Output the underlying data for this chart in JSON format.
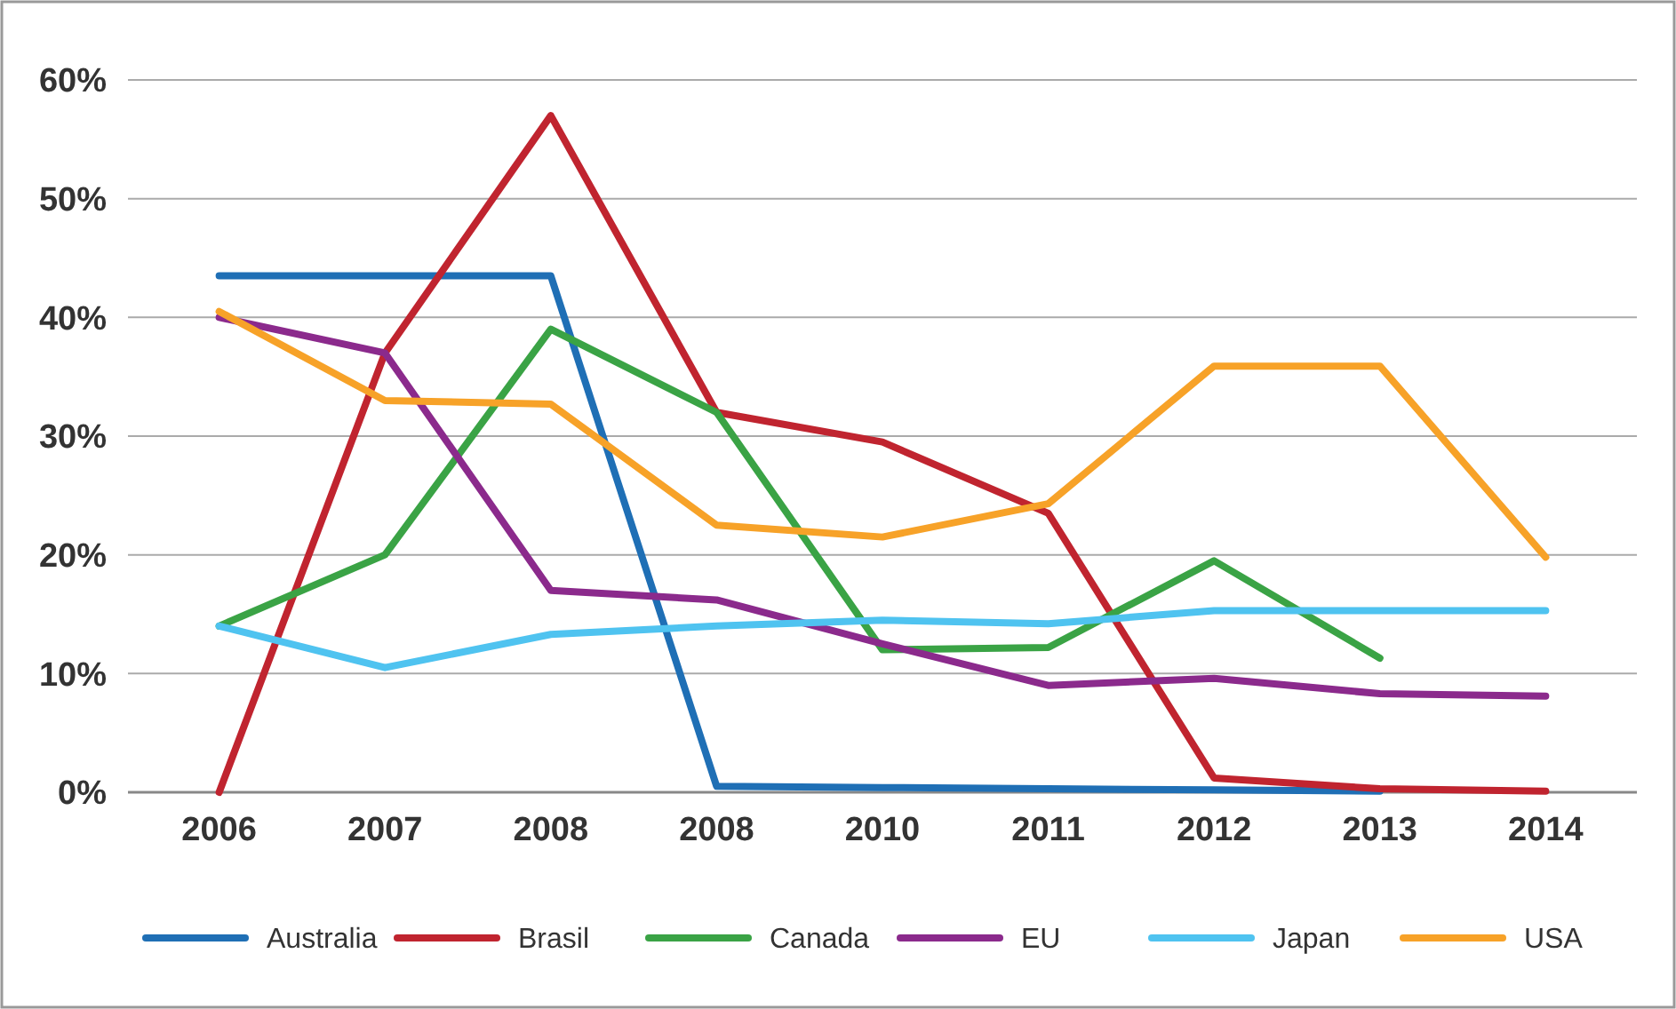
{
  "chart_data": {
    "type": "line",
    "categories": [
      "2006",
      "2007",
      "2008",
      "2008",
      "2010",
      "2011",
      "2012",
      "2013",
      "2014"
    ],
    "ylim": [
      0,
      60
    ],
    "yticks": [
      {
        "value": 0,
        "label": "0%"
      },
      {
        "value": 10,
        "label": "10%"
      },
      {
        "value": 20,
        "label": "20%"
      },
      {
        "value": 30,
        "label": "30%"
      },
      {
        "value": 40,
        "label": "40%"
      },
      {
        "value": 50,
        "label": "50%"
      },
      {
        "value": 60,
        "label": "60%"
      }
    ],
    "grid": "y",
    "legend": "bottom",
    "marker": "none",
    "line_style": "solid",
    "series": [
      {
        "name": "Australia",
        "color": "#1f6fb5",
        "values": [
          43.5,
          43.5,
          43.5,
          0.5,
          0.4,
          0.3,
          0.2,
          0.1,
          null
        ]
      },
      {
        "name": "Brasil",
        "color": "#c0242f",
        "values": [
          0,
          37,
          57,
          32,
          29.5,
          23.5,
          1.2,
          0.3,
          0.1
        ]
      },
      {
        "name": "Canada",
        "color": "#3aa345",
        "values": [
          14,
          20,
          39,
          32,
          12,
          12.2,
          19.5,
          11.3,
          null
        ]
      },
      {
        "name": "EU",
        "color": "#8b2a8c",
        "values": [
          40,
          37,
          17,
          16.2,
          12.5,
          9,
          9.6,
          8.3,
          8.1
        ]
      },
      {
        "name": "Japan",
        "color": "#4fc3f0",
        "values": [
          14,
          10.5,
          13.3,
          14,
          14.5,
          14.2,
          15.3,
          15.3,
          15.3
        ]
      },
      {
        "name": "USA",
        "color": "#f7a228",
        "values": [
          40.5,
          33,
          32.7,
          22.5,
          21.5,
          24.3,
          35.9,
          35.9,
          19.8
        ]
      }
    ]
  }
}
